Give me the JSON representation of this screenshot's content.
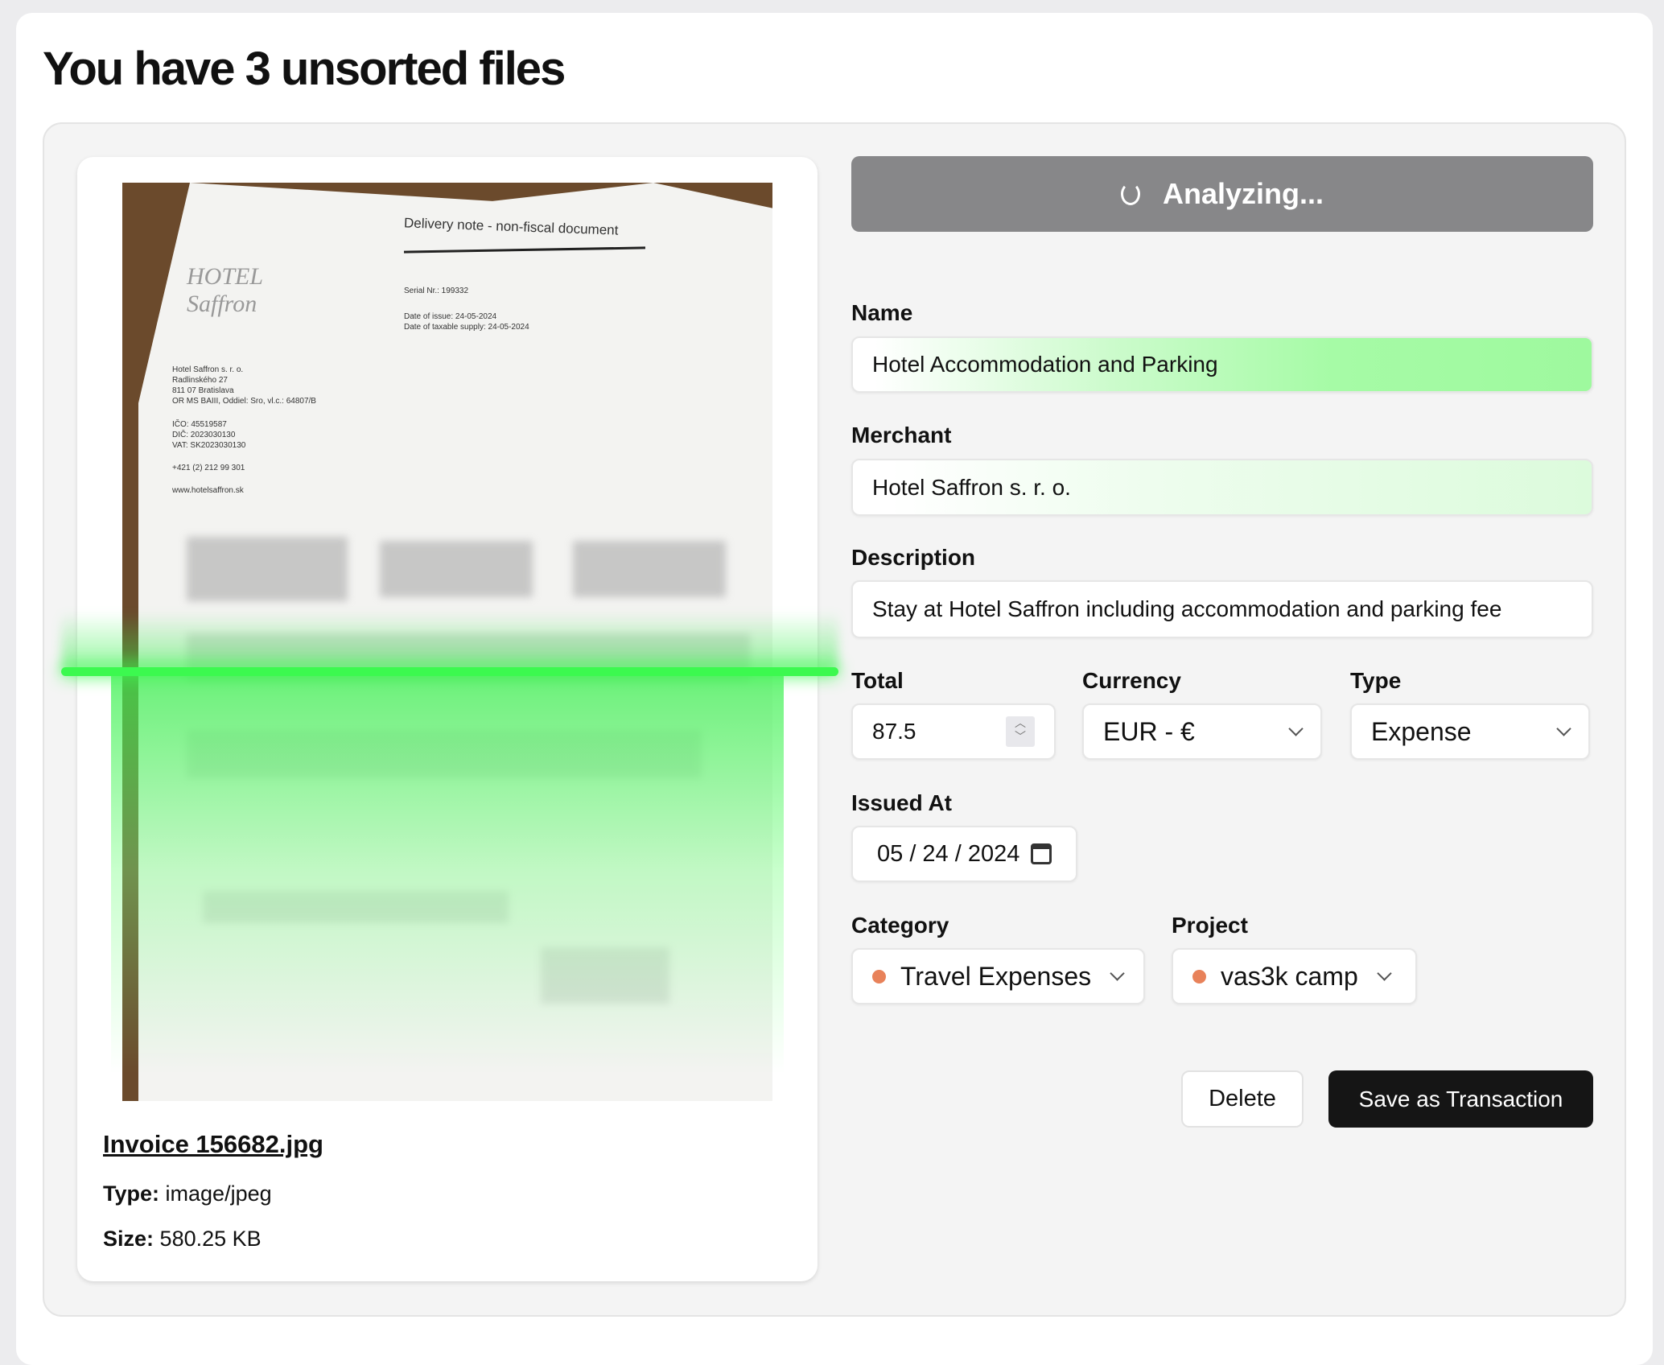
{
  "page": {
    "title": "You have 3 unsorted files"
  },
  "file": {
    "name": "Invoice 156682.jpg",
    "type_label": "Type:",
    "type": "image/jpeg",
    "size_label": "Size:",
    "size": "580.25 KB"
  },
  "document_image": {
    "heading": "Delivery note - non-fiscal document",
    "serial": "Serial Nr.: 199332",
    "dates": "Date of issue: 24-05-2024\nDate of taxable supply: 24-05-2024",
    "logo": "HOTEL Saffron",
    "address": "Hotel Saffron s. r. o.\nRadlinského 27\n811 07 Bratislava\nOR MS BAIII, Oddiel: Sro, vl.c.: 64807/B",
    "ids": "IČO: 45519587\nDIČ: 2023030130\nVAT: SK2023030130",
    "phone": "+421 (2) 212 99 301",
    "web": "www.hotelsaffron.sk"
  },
  "analyze_button": {
    "label": "Analyzing...",
    "icon": "spinner-icon"
  },
  "form": {
    "name": {
      "label": "Name",
      "value": "Hotel Accommodation and Parking"
    },
    "merchant": {
      "label": "Merchant",
      "value": "Hotel Saffron s. r. o."
    },
    "description": {
      "label": "Description",
      "value": "Stay at Hotel Saffron including accommodation and parking fee"
    },
    "total": {
      "label": "Total",
      "value": "87.5"
    },
    "currency": {
      "label": "Currency",
      "value": "EUR - €"
    },
    "type": {
      "label": "Type",
      "value": "Expense"
    },
    "issued_at": {
      "label": "Issued At",
      "value": "05 / 24 / 2024"
    },
    "category": {
      "label": "Category",
      "value": "Travel Expenses",
      "color": "#e8825a"
    },
    "project": {
      "label": "Project",
      "value": "vas3k camp",
      "color": "#e8825a"
    }
  },
  "actions": {
    "delete": "Delete",
    "save": "Save as Transaction"
  },
  "colors": {
    "scan_line": "#3cf94f",
    "analyze_bg": "#878789",
    "save_bg": "#151515"
  }
}
